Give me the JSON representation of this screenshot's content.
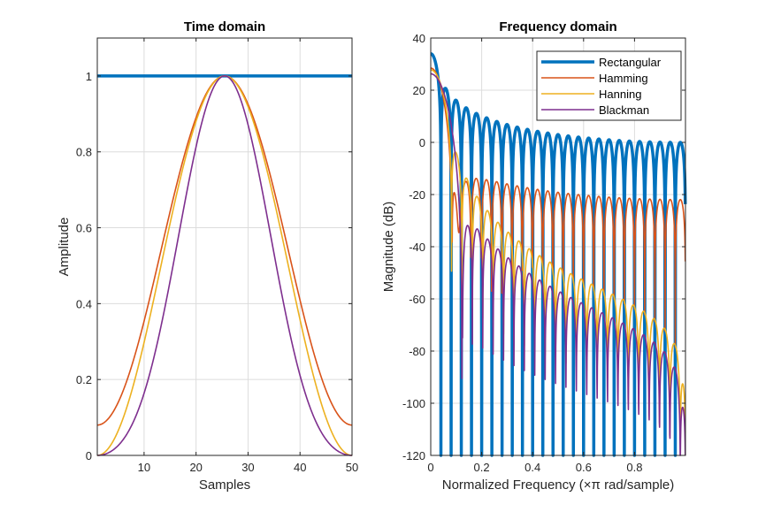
{
  "colors": {
    "rectangular": "#0072BD",
    "hamming": "#D95319",
    "hanning": "#EDB120",
    "blackman": "#7E2F8E",
    "grid": "#dcdcdc",
    "axis": "#262626"
  },
  "chart_data": [
    {
      "type": "line",
      "title": "Time domain",
      "xlabel": "Samples",
      "ylabel": "Amplitude",
      "xlim": [
        1,
        50
      ],
      "ylim": [
        0,
        1.1
      ],
      "xticks": [
        "10",
        "20",
        "30",
        "40",
        "50"
      ],
      "yticks": [
        "0",
        "0.2",
        "0.4",
        "0.6",
        "0.8",
        "1"
      ],
      "grid": true,
      "window_length": 50,
      "series": [
        {
          "key": "rectangular",
          "x": [
            1,
            50
          ],
          "values": [
            1,
            1
          ]
        },
        {
          "key": "hamming",
          "x": [
            1,
            5,
            10,
            15,
            20,
            25.5,
            31,
            36,
            41,
            46,
            50
          ],
          "values": [
            0.08,
            0.14,
            0.31,
            0.56,
            0.81,
            1.0,
            0.81,
            0.56,
            0.31,
            0.14,
            0.08
          ]
        },
        {
          "key": "hanning",
          "x": [
            1,
            5,
            10,
            15,
            20,
            25.5,
            31,
            36,
            41,
            46,
            50
          ],
          "values": [
            0.0,
            0.06,
            0.25,
            0.53,
            0.8,
            1.0,
            0.8,
            0.53,
            0.25,
            0.06,
            0.0
          ]
        },
        {
          "key": "blackman",
          "x": [
            1,
            5,
            10,
            15,
            20,
            25.5,
            31,
            36,
            41,
            46,
            50
          ],
          "values": [
            0.0,
            0.02,
            0.11,
            0.34,
            0.69,
            1.0,
            0.69,
            0.34,
            0.11,
            0.02,
            0.0
          ]
        }
      ]
    },
    {
      "type": "line",
      "title": "Frequency domain",
      "xlabel": "Normalized Frequency  (×π rad/sample)",
      "ylabel": "Magnitude (dB)",
      "xlim": [
        0,
        1
      ],
      "ylim": [
        -120,
        40
      ],
      "xticks": [
        "0",
        "0.2",
        "0.4",
        "0.6",
        "0.8"
      ],
      "yticks": [
        "-120",
        "-100",
        "-80",
        "-60",
        "-40",
        "-20",
        "0",
        "20",
        "40"
      ],
      "grid": true,
      "legend": {
        "placement": "top-right",
        "entries": [
          {
            "key": "rectangular",
            "label": "Rectangular"
          },
          {
            "key": "hamming",
            "label": "Hamming"
          },
          {
            "key": "hanning",
            "label": "Hanning"
          },
          {
            "key": "blackman",
            "label": "Blackman"
          }
        ]
      },
      "series": [
        {
          "key": "rectangular",
          "x": [
            0,
            0.04,
            0.08,
            0.16,
            0.3,
            0.5,
            0.7,
            0.9,
            1.0
          ],
          "values": [
            34,
            20,
            16,
            11,
            5,
            2,
            0,
            -1,
            -16
          ]
        },
        {
          "key": "hamming",
          "x": [
            0,
            0.04,
            0.08,
            0.16,
            0.3,
            0.5,
            0.7,
            0.9,
            1.0
          ],
          "values": [
            28,
            22,
            -44,
            -14,
            -17,
            -19,
            -21,
            -22,
            -38
          ]
        },
        {
          "key": "hanning",
          "x": [
            0,
            0.04,
            0.08,
            0.16,
            0.3,
            0.5,
            0.7,
            0.9,
            1.0
          ],
          "values": [
            28,
            20,
            -4,
            -22,
            -35,
            -48,
            -58,
            -67,
            -92
          ]
        },
        {
          "key": "blackman",
          "x": [
            0,
            0.04,
            0.08,
            0.16,
            0.3,
            0.5,
            0.7,
            0.9,
            1.0
          ],
          "values": [
            27,
            18,
            -2,
            -34,
            -45,
            -58,
            -70,
            -82,
            -113
          ]
        }
      ]
    }
  ]
}
